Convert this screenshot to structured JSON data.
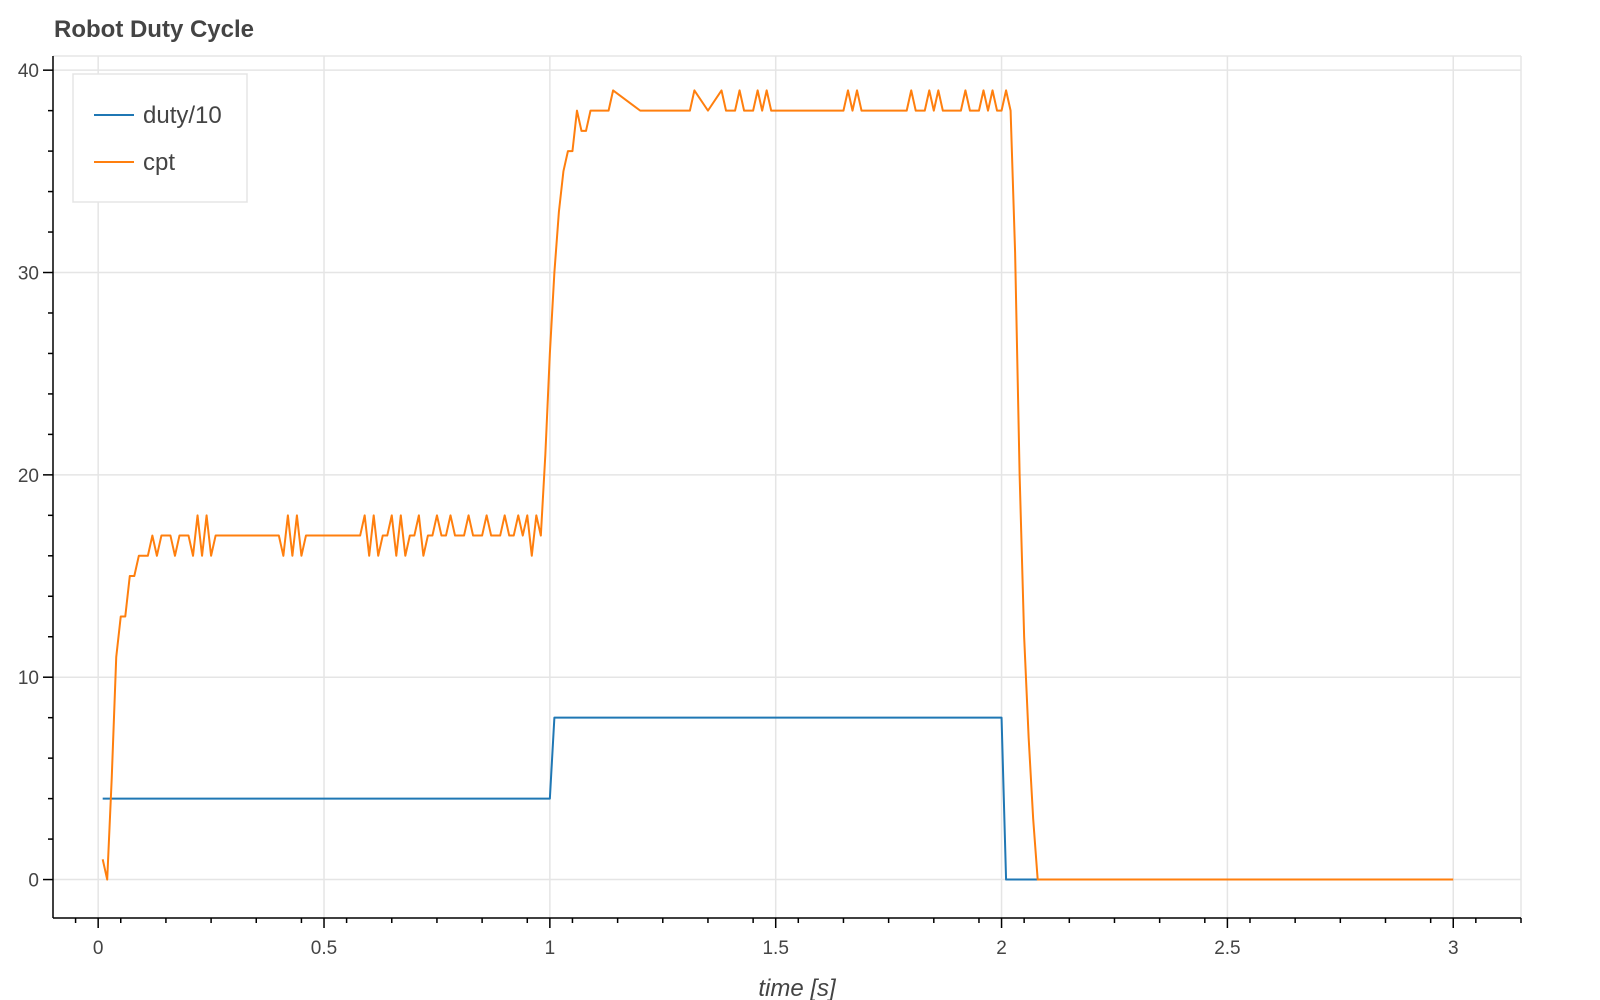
{
  "chart_data": {
    "type": "line",
    "title": "Robot Duty Cycle",
    "xlabel": "time [s]",
    "ylabel": "",
    "xlim": [
      -0.1,
      3.15
    ],
    "ylim": [
      -1.9,
      40.7
    ],
    "xticks": [
      0,
      0.5,
      1,
      1.5,
      2,
      2.5,
      3
    ],
    "xtick_labels": [
      "0",
      "0.5",
      "1",
      "1.5",
      "2",
      "2.5",
      "3"
    ],
    "yticks": [
      0,
      10,
      20,
      30,
      40
    ],
    "ytick_labels": [
      "0",
      "10",
      "20",
      "30",
      "40"
    ],
    "grid": true,
    "legend_position": "top-left",
    "series": [
      {
        "name": "duty/10",
        "color": "#1f77b4",
        "x": [
          0.01,
          1.0,
          1.01,
          2.0,
          2.01,
          2.08
        ],
        "y": [
          4,
          4,
          8,
          8,
          0,
          0
        ]
      },
      {
        "name": "cpt",
        "color": "#ff7f0e",
        "x": [
          0.01,
          0.02,
          0.03,
          0.04,
          0.05,
          0.06,
          0.07,
          0.08,
          0.09,
          0.1,
          0.11,
          0.12,
          0.13,
          0.14,
          0.15,
          0.16,
          0.17,
          0.18,
          0.19,
          0.2,
          0.21,
          0.22,
          0.23,
          0.24,
          0.25,
          0.26,
          0.27,
          0.28,
          0.29,
          0.3,
          0.35,
          0.4,
          0.41,
          0.42,
          0.43,
          0.44,
          0.45,
          0.46,
          0.5,
          0.55,
          0.58,
          0.59,
          0.6,
          0.61,
          0.62,
          0.63,
          0.64,
          0.65,
          0.66,
          0.67,
          0.68,
          0.69,
          0.7,
          0.71,
          0.72,
          0.73,
          0.74,
          0.75,
          0.76,
          0.77,
          0.78,
          0.79,
          0.8,
          0.81,
          0.82,
          0.83,
          0.84,
          0.85,
          0.86,
          0.87,
          0.88,
          0.89,
          0.9,
          0.91,
          0.92,
          0.93,
          0.94,
          0.95,
          0.96,
          0.97,
          0.98,
          0.99,
          1.0,
          1.01,
          1.02,
          1.03,
          1.04,
          1.05,
          1.06,
          1.07,
          1.08,
          1.09,
          1.1,
          1.11,
          1.12,
          1.13,
          1.14,
          1.2,
          1.25,
          1.3,
          1.31,
          1.32,
          1.35,
          1.38,
          1.39,
          1.4,
          1.41,
          1.42,
          1.43,
          1.44,
          1.45,
          1.46,
          1.47,
          1.48,
          1.49,
          1.5,
          1.55,
          1.6,
          1.65,
          1.66,
          1.67,
          1.68,
          1.69,
          1.7,
          1.75,
          1.78,
          1.79,
          1.8,
          1.81,
          1.82,
          1.83,
          1.84,
          1.85,
          1.86,
          1.87,
          1.88,
          1.9,
          1.91,
          1.92,
          1.93,
          1.94,
          1.95,
          1.96,
          1.97,
          1.98,
          1.99,
          2.0,
          2.01,
          2.02,
          2.03,
          2.04,
          2.05,
          2.06,
          2.07,
          2.08,
          2.5,
          3.0
        ],
        "y": [
          1,
          0,
          5,
          11,
          13,
          13,
          15,
          15,
          16,
          16,
          16,
          17,
          16,
          17,
          17,
          17,
          16,
          17,
          17,
          17,
          16,
          18,
          16,
          18,
          16,
          17,
          17,
          17,
          17,
          17,
          17,
          17,
          16,
          18,
          16,
          18,
          16,
          17,
          17,
          17,
          17,
          18,
          16,
          18,
          16,
          17,
          17,
          18,
          16,
          18,
          16,
          17,
          17,
          18,
          16,
          17,
          17,
          18,
          17,
          17,
          18,
          17,
          17,
          17,
          18,
          17,
          17,
          17,
          18,
          17,
          17,
          17,
          18,
          17,
          17,
          18,
          17,
          18,
          16,
          18,
          17,
          21,
          26,
          30,
          33,
          35,
          36,
          36,
          38,
          37,
          37,
          38,
          38,
          38,
          38,
          38,
          39,
          38,
          38,
          38,
          38,
          39,
          38,
          39,
          38,
          38,
          38,
          39,
          38,
          38,
          38,
          39,
          38,
          39,
          38,
          38,
          38,
          38,
          38,
          39,
          38,
          39,
          38,
          38,
          38,
          38,
          38,
          39,
          38,
          38,
          38,
          39,
          38,
          39,
          38,
          38,
          38,
          38,
          39,
          38,
          38,
          38,
          39,
          38,
          39,
          38,
          38,
          39,
          38,
          31,
          20,
          12,
          7,
          3,
          0,
          0,
          0
        ]
      }
    ]
  }
}
